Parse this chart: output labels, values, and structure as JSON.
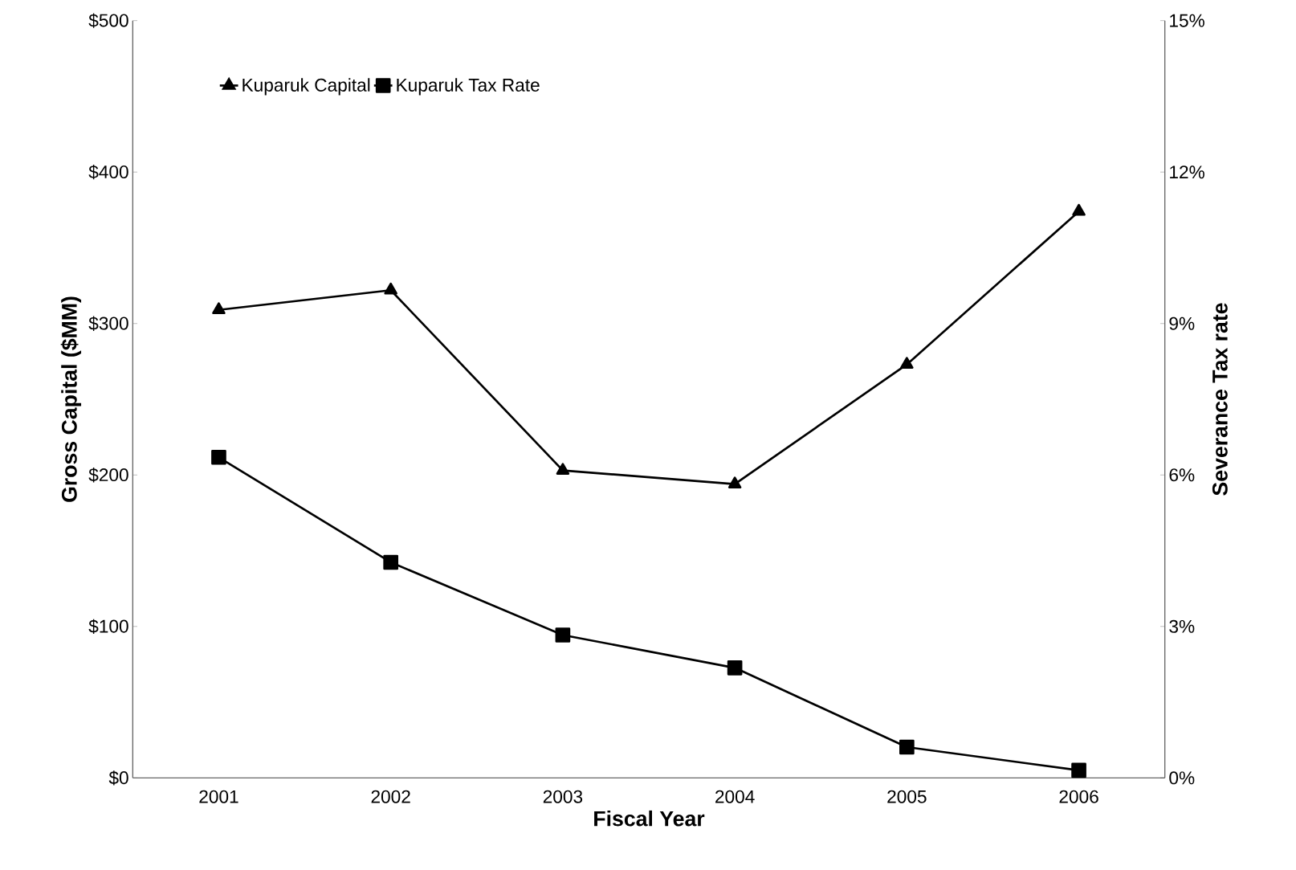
{
  "chart_data": {
    "type": "line",
    "xlabel": "Fiscal Year",
    "ylabel": "Gross Capital ($MM)",
    "y2label": "Severance Tax rate",
    "categories": [
      "2001",
      "2002",
      "2003",
      "2004",
      "2005",
      "2006"
    ],
    "series": [
      {
        "name": "Kuparuk Capital",
        "color": "#000000",
        "marker": "triangle",
        "values": [
          309,
          322,
          203,
          194,
          273,
          374
        ]
      },
      {
        "name": "Kuparuk Tax Rate",
        "color": "#000000",
        "marker": "square",
        "axis": "y2",
        "values": [
          6.35,
          4.27,
          2.83,
          2.18,
          0.61,
          0.15
        ]
      }
    ],
    "ylim": [
      0,
      500
    ],
    "yticks": [
      {
        "value": 0,
        "label": "$0"
      },
      {
        "value": 100,
        "label": "$100"
      },
      {
        "value": 200,
        "label": "$200"
      },
      {
        "value": 300,
        "label": "$300"
      },
      {
        "value": 400,
        "label": "$400"
      },
      {
        "value": 500,
        "label": "$500"
      }
    ],
    "y2lim": [
      0,
      15
    ],
    "y2ticks": [
      {
        "value": 0,
        "label": "0%"
      },
      {
        "value": 3,
        "label": "3%"
      },
      {
        "value": 6,
        "label": "6%"
      },
      {
        "value": 9,
        "label": "9%"
      },
      {
        "value": 12,
        "label": "12%"
      },
      {
        "value": 15,
        "label": "15%"
      }
    ],
    "legend": "top left",
    "grid": false,
    "line_style": "solid"
  }
}
